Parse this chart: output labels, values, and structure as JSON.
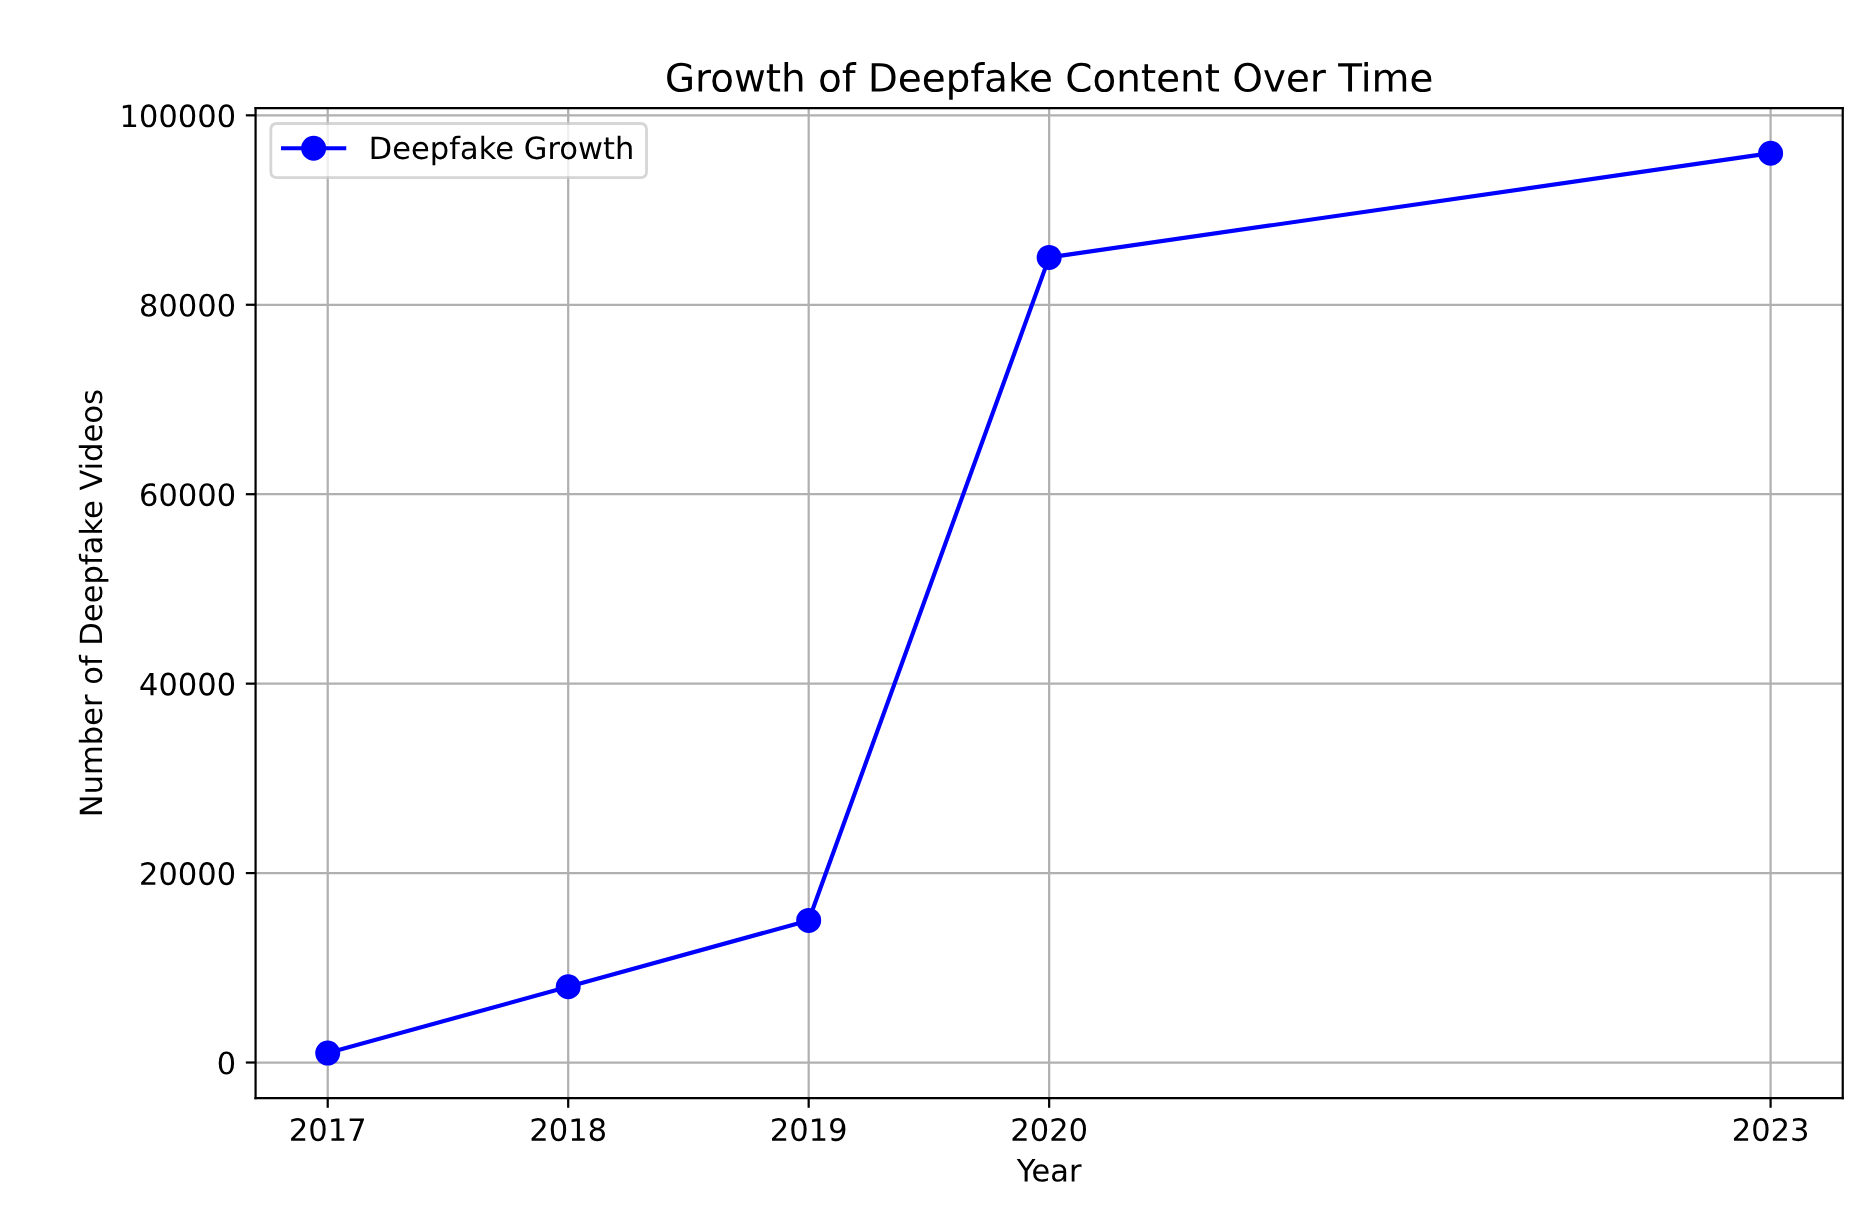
{
  "chart_data": {
    "type": "line",
    "title": "Growth of Deepfake Content Over Time",
    "xlabel": "Year",
    "ylabel": "Number of Deepfake Videos",
    "x": [
      2017,
      2018,
      2019,
      2020,
      2023
    ],
    "series": [
      {
        "name": "Deepfake Growth",
        "color": "#0000ff",
        "values": [
          1000,
          8000,
          15000,
          85000,
          96000
        ]
      }
    ],
    "xlim": [
      2016.7,
      2023.3
    ],
    "xticks": [
      2017,
      2018,
      2019,
      2020,
      2023
    ],
    "ylim": [
      -3750,
      100750
    ],
    "yticks": [
      0,
      20000,
      40000,
      60000,
      80000,
      100000
    ],
    "grid": true,
    "legend": "top left",
    "marker": "circle",
    "line_style": "solid"
  }
}
